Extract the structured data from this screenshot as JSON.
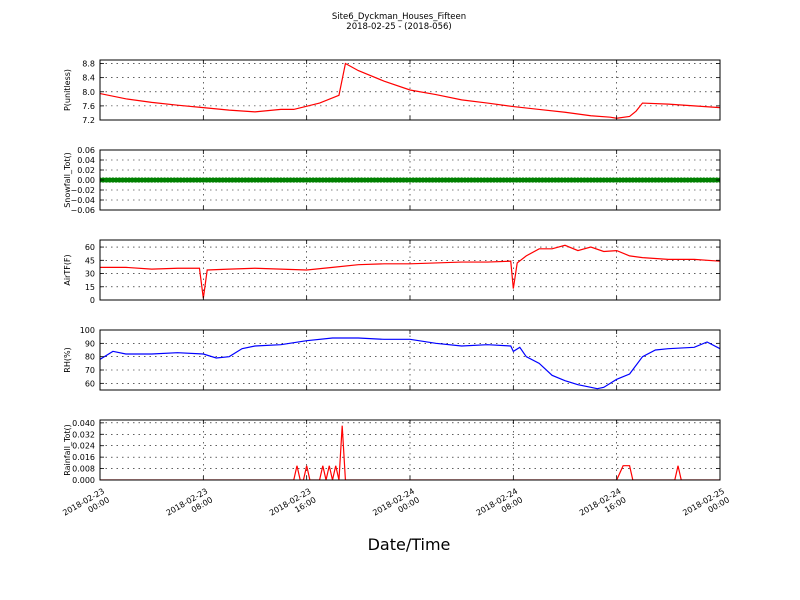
{
  "figure": {
    "title_line1": "Site6_Dyckman_Houses_Fifteen",
    "title_line2": "2018-02-25 - (2018-056)",
    "xlabel": "Date/Time",
    "x_ticks": [
      {
        "t": 0,
        "line1": "2018-02-23",
        "line2": "00:00"
      },
      {
        "t": 8,
        "line1": "2018-02-23",
        "line2": "08:00"
      },
      {
        "t": 16,
        "line1": "2018-02-23",
        "line2": "16:00"
      },
      {
        "t": 24,
        "line1": "2018-02-24",
        "line2": "00:00"
      },
      {
        "t": 32,
        "line1": "2018-02-24",
        "line2": "08:00"
      },
      {
        "t": 40,
        "line1": "2018-02-24",
        "line2": "16:00"
      },
      {
        "t": 48,
        "line1": "2018-02-25",
        "line2": "00:00"
      }
    ]
  },
  "chart_data": [
    {
      "type": "line",
      "ylabel": "P(unitless)",
      "ylim": [
        7.2,
        8.9
      ],
      "yticks": [
        7.2,
        7.6,
        8.0,
        8.4,
        8.8
      ],
      "tick_labels": [
        "7.2",
        "7.6",
        "8.0",
        "8.4",
        "8.8"
      ],
      "grid": true,
      "color": "#ff0000",
      "x_hours": [
        0,
        2,
        4,
        6,
        8,
        10,
        12,
        14,
        15,
        17,
        18.5,
        19,
        20,
        22,
        24,
        26,
        28,
        30,
        32,
        34,
        36,
        38,
        39.5,
        40,
        41,
        41.5,
        42,
        44,
        46,
        48
      ],
      "y": [
        7.95,
        7.8,
        7.7,
        7.62,
        7.55,
        7.48,
        7.43,
        7.5,
        7.5,
        7.68,
        7.9,
        8.8,
        8.6,
        8.3,
        8.05,
        7.92,
        7.77,
        7.68,
        7.58,
        7.5,
        7.42,
        7.32,
        7.28,
        7.25,
        7.3,
        7.45,
        7.68,
        7.65,
        7.6,
        7.55
      ]
    },
    {
      "type": "scatter",
      "ylabel": "Snowfall_Tot()",
      "ylim": [
        -0.06,
        0.06
      ],
      "yticks": [
        -0.06,
        -0.04,
        -0.02,
        0.0,
        0.02,
        0.04,
        0.06
      ],
      "tick_labels": [
        "−0.06",
        "−0.04",
        "−0.02",
        "0.00",
        "0.02",
        "0.04",
        "0.06"
      ],
      "grid": true,
      "color": "#008000",
      "constant_value": 0.0,
      "x_range_hours": [
        0,
        48
      ]
    },
    {
      "type": "line",
      "ylabel": "AirTF(F)",
      "ylim": [
        0,
        68
      ],
      "yticks": [
        0,
        15,
        30,
        45,
        60
      ],
      "tick_labels": [
        "0",
        "15",
        "30",
        "45",
        "60"
      ],
      "grid": true,
      "color": "#ff0000",
      "x_hours": [
        0,
        2,
        4,
        6,
        7.7,
        8,
        8.3,
        10,
        12,
        14,
        16,
        18,
        20,
        22,
        24,
        26,
        28,
        30,
        31.8,
        32,
        32.3,
        33,
        34,
        35,
        36,
        37,
        38,
        39,
        40,
        41,
        42,
        44,
        46,
        48
      ],
      "y": [
        37,
        37,
        35,
        36,
        36,
        2,
        34,
        35,
        36,
        35,
        34,
        37,
        40,
        41,
        41,
        42,
        43,
        43,
        44,
        13,
        42,
        50,
        58,
        58,
        62,
        56,
        60,
        55,
        56,
        50,
        48,
        46,
        46,
        44
      ]
    },
    {
      "type": "line",
      "ylabel": "RH(%)",
      "ylim": [
        55,
        100
      ],
      "yticks": [
        60,
        70,
        80,
        90,
        100
      ],
      "tick_labels": [
        "60",
        "70",
        "80",
        "90",
        "100"
      ],
      "grid": true,
      "color": "#0000ff",
      "x_hours": [
        0,
        1,
        2,
        4,
        6,
        8,
        9,
        10,
        11,
        12,
        14,
        16,
        18,
        20,
        22,
        24,
        26,
        28,
        30,
        31.8,
        32,
        32.5,
        33,
        34,
        35,
        36,
        37,
        38,
        38.5,
        39,
        40,
        41,
        42,
        43,
        44,
        46,
        47,
        48
      ],
      "y": [
        78,
        84,
        82,
        82,
        83,
        82,
        79,
        80,
        86,
        88,
        89,
        92,
        94,
        94,
        93,
        93,
        90,
        88,
        89,
        88,
        84,
        87,
        80,
        75,
        66,
        62,
        59,
        57,
        56,
        57,
        63,
        67,
        80,
        85,
        86,
        87,
        91,
        86
      ]
    },
    {
      "type": "line",
      "ylabel": "Rainfall_Tot()",
      "ylim": [
        0,
        0.042
      ],
      "yticks": [
        0.0,
        0.008,
        0.016,
        0.024,
        0.032,
        0.04
      ],
      "tick_labels": [
        "0.000",
        "0.008",
        "0.016",
        "0.024",
        "0.032",
        "0.040"
      ],
      "grid": true,
      "color": "#ff0000",
      "x_hours": [
        0,
        15,
        15.25,
        15.5,
        15.75,
        16,
        16.25,
        16.5,
        17,
        17.25,
        17.5,
        17.75,
        18,
        18.25,
        18.5,
        18.75,
        19,
        19.25,
        19.5,
        20,
        40,
        40.5,
        40.75,
        41,
        41.25,
        41.5,
        41.75,
        42,
        44.5,
        44.75,
        45,
        45.25,
        48
      ],
      "y": [
        0,
        0,
        0.01,
        0,
        0,
        0.01,
        0,
        0,
        0,
        0.01,
        0,
        0.01,
        0,
        0.01,
        0,
        0.038,
        0,
        0,
        0,
        0,
        0,
        0.01,
        0.01,
        0.01,
        0,
        0,
        0,
        0,
        0,
        0.01,
        0,
        0,
        0
      ]
    }
  ]
}
